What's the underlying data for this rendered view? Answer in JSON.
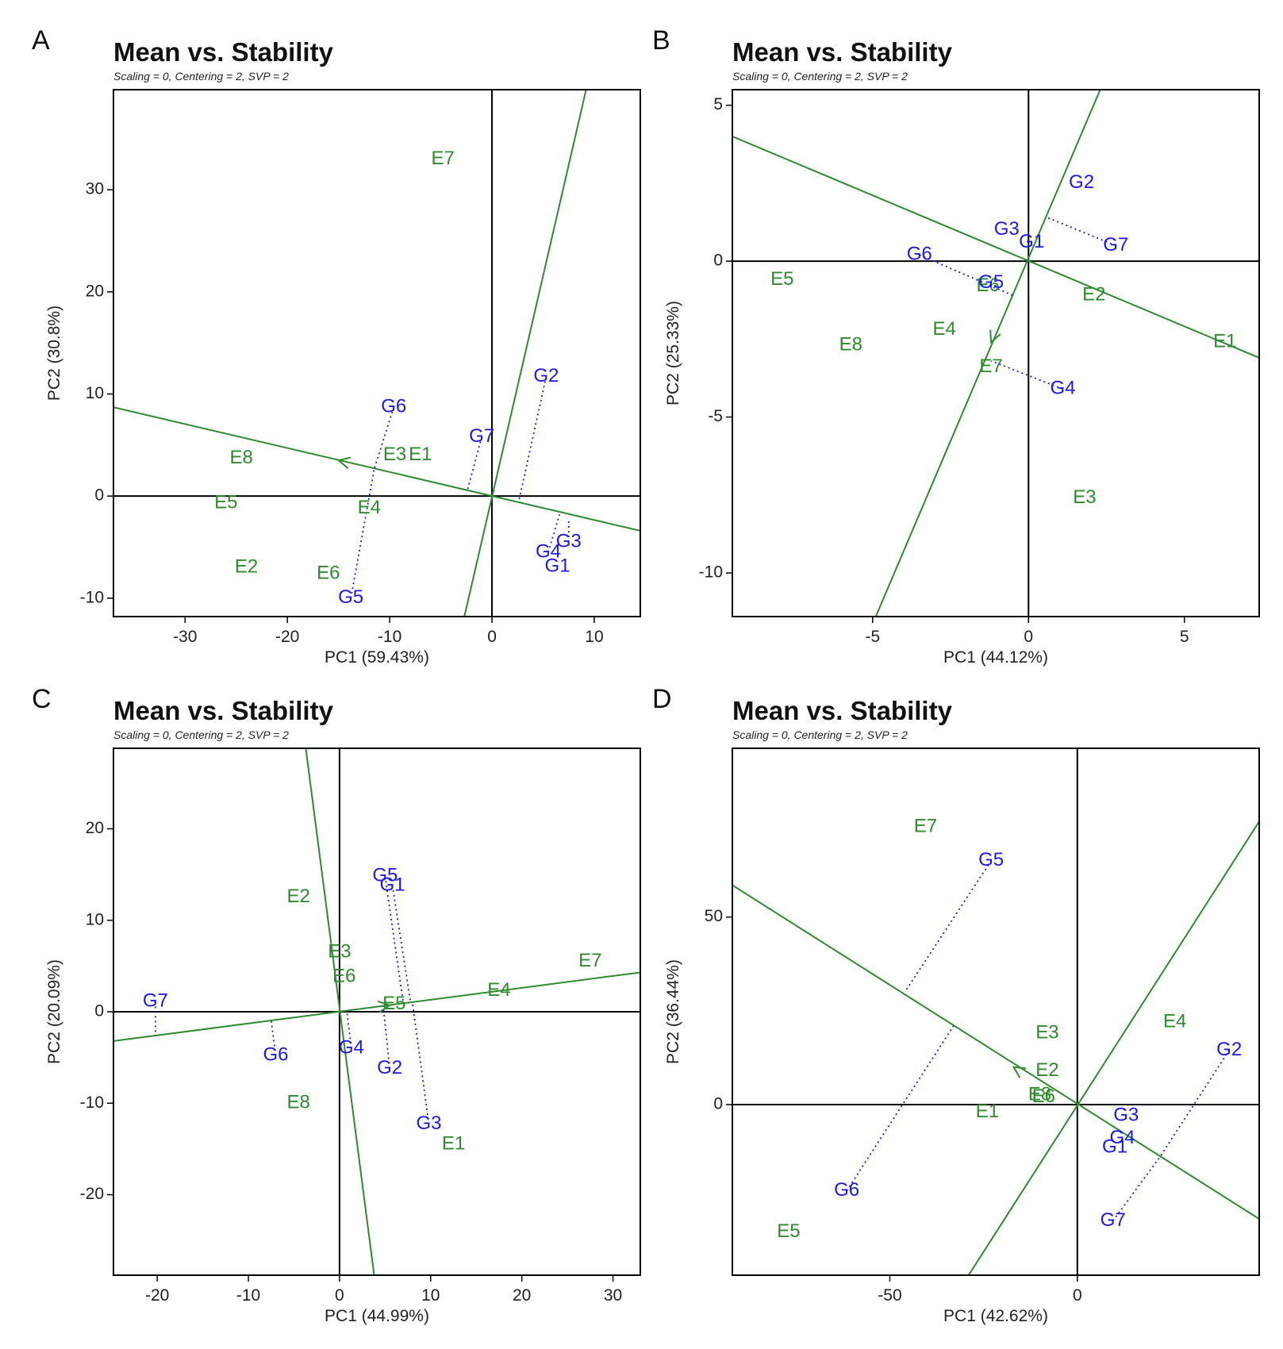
{
  "colors": {
    "env": "#2e8b2e",
    "gen": "#1a1aee",
    "axis": "#000000",
    "frame": "#000000"
  },
  "chart_data": [
    {
      "type": "scatter",
      "panel": "A",
      "title": "Mean vs. Stability",
      "subtitle": "Scaling = 0, Centering = 2, SVP = 2",
      "xlabel": "PC1 (59.43%)",
      "ylabel": "PC2 (30.8%)",
      "xlim": [
        -37,
        14.5
      ],
      "ylim": [
        -11.8,
        39.8
      ],
      "xticks": [
        -30,
        -20,
        -10,
        0,
        10
      ],
      "yticks": [
        -10,
        0,
        10,
        20,
        30
      ],
      "aec_abscissa": [
        [
          -37,
          8.7
        ],
        [
          14.5,
          -3.4
        ]
      ],
      "aec_ordinate": [
        [
          -2.7,
          -11.8
        ],
        [
          9.2,
          39.8
        ]
      ],
      "arrow": {
        "x": -15,
        "y": 3.5,
        "dir": [
          -1,
          0.235
        ]
      },
      "environments": [
        {
          "label": "E1",
          "x": -7,
          "y": 4
        },
        {
          "label": "E2",
          "x": -24,
          "y": -7
        },
        {
          "label": "E3",
          "x": -9.5,
          "y": 4
        },
        {
          "label": "E4",
          "x": -12,
          "y": -1.2
        },
        {
          "label": "E5",
          "x": -26,
          "y": -0.7
        },
        {
          "label": "E6",
          "x": -16,
          "y": -7.6
        },
        {
          "label": "E7",
          "x": -4.8,
          "y": 33
        },
        {
          "label": "E8",
          "x": -24.5,
          "y": 3.7
        }
      ],
      "genotypes": [
        {
          "label": "G1",
          "x": 6.4,
          "y": -6.9,
          "proj": [
            6.4,
            -6.9
          ]
        },
        {
          "label": "G2",
          "x": 5.3,
          "y": 11.7,
          "proj": [
            2.6,
            -0.6
          ]
        },
        {
          "label": "G3",
          "x": 7.5,
          "y": -4.5,
          "proj": [
            7.5,
            -2.3
          ]
        },
        {
          "label": "G4",
          "x": 5.5,
          "y": -5.5,
          "proj": [
            6.6,
            -1.8
          ]
        },
        {
          "label": "G5",
          "x": -13.8,
          "y": -10,
          "proj": [
            -11.5,
            2.7
          ]
        },
        {
          "label": "G6",
          "x": -9.6,
          "y": 8.7,
          "proj": [
            -11.5,
            2.7
          ]
        },
        {
          "label": "G7",
          "x": -1,
          "y": 5.8,
          "proj": [
            -2.4,
            0.6
          ]
        }
      ]
    },
    {
      "type": "scatter",
      "panel": "B",
      "title": "Mean vs. Stability",
      "subtitle": "Scaling = 0, Centering = 2, SVP = 2",
      "xlabel": "PC1 (44.12%)",
      "ylabel": "PC2 (25.33%)",
      "xlim": [
        -9.5,
        7.4
      ],
      "ylim": [
        -11.4,
        5.5
      ],
      "xticks": [
        -5,
        0,
        5
      ],
      "yticks": [
        -10,
        -5,
        0,
        5
      ],
      "aec_abscissa": [
        [
          -9.5,
          4
        ],
        [
          7.4,
          -3.1
        ]
      ],
      "aec_ordinate": [
        [
          -4.9,
          -11.4
        ],
        [
          2.3,
          5.5
        ]
      ],
      "arrow": {
        "x": -1.2,
        "y": -2.6,
        "dir": [
          -0.42,
          -1
        ]
      },
      "environments": [
        {
          "label": "E1",
          "x": 6.3,
          "y": -2.6
        },
        {
          "label": "E2",
          "x": 2.1,
          "y": -1.1
        },
        {
          "label": "E3",
          "x": 1.8,
          "y": -7.6
        },
        {
          "label": "E4",
          "x": -2.7,
          "y": -2.2
        },
        {
          "label": "E5",
          "x": -7.9,
          "y": -0.6
        },
        {
          "label": "E6",
          "x": -1.3,
          "y": -0.8
        },
        {
          "label": "E7",
          "x": -1.2,
          "y": -3.4
        },
        {
          "label": "E8",
          "x": -5.7,
          "y": -2.7
        }
      ],
      "genotypes": [
        {
          "label": "G1",
          "x": 0.1,
          "y": 0.6,
          "proj": [
            0.1,
            0.6
          ]
        },
        {
          "label": "G2",
          "x": 1.7,
          "y": 2.5,
          "proj": [
            1.7,
            2.5
          ]
        },
        {
          "label": "G3",
          "x": -0.7,
          "y": 1,
          "proj": [
            -0.7,
            1
          ]
        },
        {
          "label": "G4",
          "x": 1.1,
          "y": -4.1,
          "proj": [
            -1.2,
            -3.2
          ]
        },
        {
          "label": "G5",
          "x": -1.2,
          "y": -0.7,
          "proj": [
            -1.2,
            -0.7
          ]
        },
        {
          "label": "G6",
          "x": -3.5,
          "y": 0.2,
          "proj": [
            -0.5,
            -1.1
          ]
        },
        {
          "label": "G7",
          "x": 2.8,
          "y": 0.5,
          "proj": [
            0.6,
            1.4
          ]
        }
      ]
    },
    {
      "type": "scatter",
      "panel": "C",
      "title": "Mean vs. Stability",
      "subtitle": "Scaling = 0, Centering = 2, SVP = 2",
      "xlabel": "PC1 (44.99%)",
      "ylabel": "PC2 (20.09%)",
      "xlim": [
        -24.8,
        33
      ],
      "ylim": [
        -28.8,
        28.8
      ],
      "xticks": [
        -20,
        -10,
        0,
        10,
        20,
        30
      ],
      "yticks": [
        -20,
        -10,
        0,
        10,
        20
      ],
      "aec_abscissa": [
        [
          -24.8,
          -3.2
        ],
        [
          33,
          4.3
        ]
      ],
      "aec_ordinate": [
        [
          3.8,
          -28.8
        ],
        [
          -3.7,
          28.8
        ]
      ],
      "arrow": {
        "x": 5.5,
        "y": 0.7,
        "dir": [
          1,
          0.13
        ]
      },
      "environments": [
        {
          "label": "E1",
          "x": 12.5,
          "y": -14.5
        },
        {
          "label": "E2",
          "x": -4.5,
          "y": 12.5
        },
        {
          "label": "E3",
          "x": 0,
          "y": 6.5
        },
        {
          "label": "E4",
          "x": 17.5,
          "y": 2.3
        },
        {
          "label": "E5",
          "x": 6,
          "y": 0.8
        },
        {
          "label": "E6",
          "x": 0.5,
          "y": 3.8
        },
        {
          "label": "E7",
          "x": 27.5,
          "y": 5.5
        },
        {
          "label": "E8",
          "x": -4.5,
          "y": -10
        }
      ],
      "genotypes": [
        {
          "label": "G1",
          "x": 5.8,
          "y": 13.8,
          "proj": [
            7.8,
            1
          ]
        },
        {
          "label": "G2",
          "x": 5.5,
          "y": -6.2,
          "proj": [
            4.8,
            0.6
          ]
        },
        {
          "label": "G3",
          "x": 9.8,
          "y": -12.3,
          "proj": [
            8,
            1
          ]
        },
        {
          "label": "G4",
          "x": 1.3,
          "y": -4,
          "proj": [
            0.8,
            0.1
          ]
        },
        {
          "label": "G5",
          "x": 5,
          "y": 14.8,
          "proj": [
            7,
            0.9
          ]
        },
        {
          "label": "G6",
          "x": -7,
          "y": -4.8,
          "proj": [
            -7.5,
            -0.9
          ]
        },
        {
          "label": "G7",
          "x": -20.2,
          "y": 1.1,
          "proj": [
            -20.2,
            -2.6
          ]
        }
      ]
    },
    {
      "type": "scatter",
      "panel": "D",
      "title": "Mean vs. Stability",
      "subtitle": "Scaling = 0, Centering = 2, SVP = 2",
      "xlabel": "PC1 (42.62%)",
      "ylabel": "PC2 (36.44%)",
      "xlim": [
        -92,
        48.5
      ],
      "ylim": [
        -45.5,
        95
      ],
      "xticks": [
        -50,
        0
      ],
      "yticks": [
        0,
        50
      ],
      "aec_abscissa": [
        [
          -92,
          58.5
        ],
        [
          48.5,
          -30.5
        ]
      ],
      "aec_ordinate": [
        [
          -29,
          -45.5
        ],
        [
          48.5,
          75.5
        ]
      ],
      "arrow": {
        "x": -17,
        "y": 10,
        "dir": [
          -1,
          0.64
        ]
      },
      "environments": [
        {
          "label": "E1",
          "x": -24,
          "y": -2
        },
        {
          "label": "E2",
          "x": -8,
          "y": 9
        },
        {
          "label": "E3",
          "x": -8,
          "y": 19
        },
        {
          "label": "E4",
          "x": 26,
          "y": 22
        },
        {
          "label": "E5",
          "x": -77,
          "y": -34
        },
        {
          "label": "E6",
          "x": -9,
          "y": 2
        },
        {
          "label": "E7",
          "x": -40.5,
          "y": 74
        },
        {
          "label": "E8",
          "x": -10,
          "y": 2.5
        }
      ],
      "genotypes": [
        {
          "label": "G1",
          "x": 10,
          "y": -11.5,
          "proj": [
            10,
            -11.5
          ]
        },
        {
          "label": "G2",
          "x": 40.5,
          "y": 14.5,
          "proj": [
            22,
            -14
          ]
        },
        {
          "label": "G3",
          "x": 13,
          "y": -3,
          "proj": [
            13,
            -3
          ]
        },
        {
          "label": "G4",
          "x": 12,
          "y": -9,
          "proj": [
            12,
            -9
          ]
        },
        {
          "label": "G5",
          "x": -23,
          "y": 65,
          "proj": [
            -46,
            30
          ]
        },
        {
          "label": "G6",
          "x": -61.5,
          "y": -23,
          "proj": [
            -33,
            21
          ]
        },
        {
          "label": "G7",
          "x": 9.5,
          "y": -31,
          "proj": [
            22,
            -14
          ]
        }
      ]
    }
  ]
}
